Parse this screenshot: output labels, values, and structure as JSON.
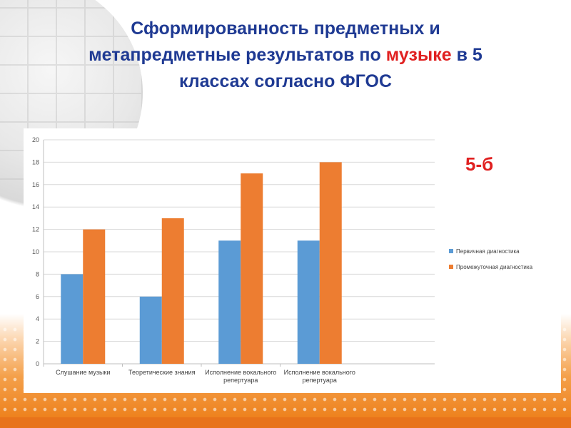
{
  "title": {
    "line1": "Сформированность предметных и",
    "line2_before": "метапредметные результатов  по ",
    "line2_highlight": "музыке",
    "line2_after": " в 5",
    "line3": "классах согласно ФГОС"
  },
  "class_label": "5-б",
  "colors": {
    "title": "#1f3a93",
    "highlight": "#e02020",
    "series1": "#5b9bd5",
    "series2": "#ed7d31"
  },
  "chart_data": {
    "type": "bar",
    "categories": [
      [
        "Слушание музыки"
      ],
      [
        "Теоретические знания"
      ],
      [
        "Исполнение вокального",
        "репертуара"
      ],
      [
        "Исполнение вокального",
        "репертуара"
      ]
    ],
    "series": [
      {
        "name": "Первичная диагностика",
        "values": [
          8,
          6,
          11,
          11
        ]
      },
      {
        "name": "Промежуточная диагностика",
        "values": [
          12,
          13,
          17,
          18
        ]
      }
    ],
    "ylim": [
      0,
      20
    ],
    "yticks": [
      0,
      2,
      4,
      6,
      8,
      10,
      12,
      14,
      16,
      18,
      20
    ],
    "grid": true,
    "legend_position": "right"
  }
}
